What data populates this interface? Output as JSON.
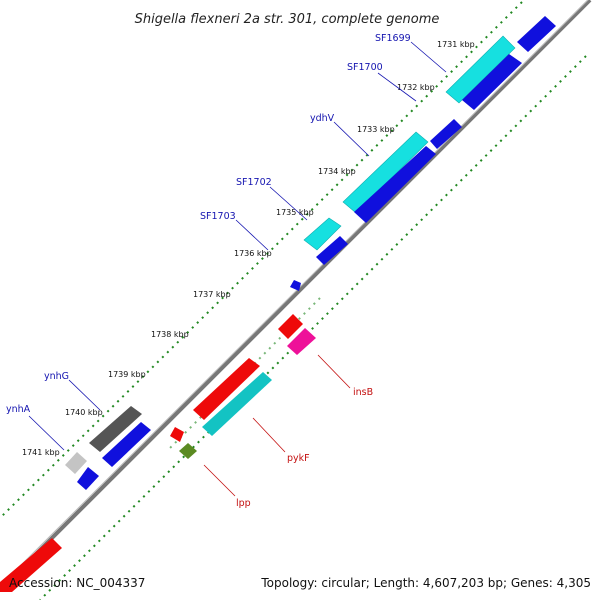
{
  "title": "Shigella flexneri 2a str. 301, complete genome",
  "footer": {
    "accession": "Accession: NC_004337",
    "summary": "Topology: circular; Length: 4,607,203 bp; Genes: 4,305"
  },
  "ticks": [
    "1731 kbp",
    "1732 kbp",
    "1733 kbp",
    "1734 kbp",
    "1735 kbp",
    "1736 kbp",
    "1737 kbp",
    "1738 kbp",
    "1739 kbp",
    "1740 kbp",
    "1741 kbp"
  ],
  "labels": {
    "sf1699": "SF1699",
    "sf1700": "SF1700",
    "ydhv": "ydhV",
    "sf1702": "SF1702",
    "sf1703": "SF1703",
    "ynhg": "ynhG",
    "ynha": "ynhA",
    "insb": "insB",
    "pykf": "pykF",
    "lpp": "lpp"
  },
  "colors": {
    "blue_gene": "#1010dd",
    "cyan_gene": "#16e0e0",
    "teal_gene": "#13c3c3",
    "red_gene": "#ee0a0a",
    "pink_gene": "#ee1199",
    "gray_gene": "#555555",
    "lightgray_gene": "#c4c4c4",
    "olive_gene": "#5b8a22",
    "backbone": "#777777",
    "tick_dots": "#228822",
    "blue_label": "#1515b0",
    "red_label": "#c41010"
  }
}
